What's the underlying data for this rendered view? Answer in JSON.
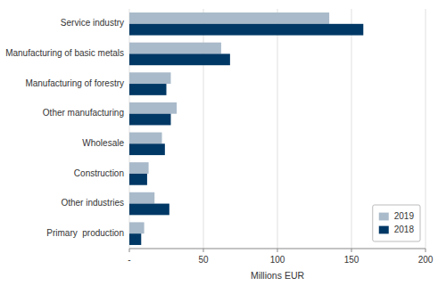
{
  "chart_data": {
    "type": "bar",
    "orientation": "horizontal",
    "categories": [
      "Service industry",
      "Manufacturing of basic metals",
      "Manufacturing of forestry",
      "Other manufacturing",
      "Wholesale",
      "Construction",
      "Other industries",
      "Primary  production"
    ],
    "series": [
      {
        "name": "2019",
        "color": "#a9baca",
        "values": [
          135,
          62,
          28,
          32,
          22,
          13,
          17,
          10
        ]
      },
      {
        "name": "2018",
        "color": "#003865",
        "values": [
          158,
          68,
          25,
          28,
          24,
          12,
          27,
          8
        ]
      }
    ],
    "xlabel": "Millions EUR",
    "xlim": [
      0,
      200
    ],
    "xticks": [
      {
        "value": 0,
        "label": "-"
      },
      50,
      100,
      150,
      200
    ],
    "grid": true,
    "legend": "lower right"
  }
}
